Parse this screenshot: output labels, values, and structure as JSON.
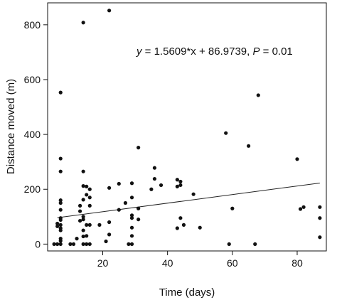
{
  "chart_data": {
    "type": "scatter",
    "title": "",
    "xlabel": "Time (days)",
    "ylabel": "Distance moved (m)",
    "xlim": [
      3,
      89
    ],
    "ylim": [
      -25,
      880
    ],
    "xticks": [
      20,
      40,
      60,
      80
    ],
    "yticks": [
      0,
      200,
      400,
      600,
      800
    ],
    "grid": false,
    "legend": "none",
    "point_color": "#111111",
    "line_color": "#222222",
    "annotation": {
      "y_var": "y",
      "equation": " = 1.5609*x + 86.9739, ",
      "p_var": "P",
      "p_value": " = 0.01"
    },
    "fit": {
      "slope": 1.5609,
      "intercept": 86.9739,
      "x_range": [
        6,
        87
      ]
    },
    "points": [
      {
        "x": 5,
        "y": 0
      },
      {
        "x": 6,
        "y": 0
      },
      {
        "x": 7,
        "y": 0
      },
      {
        "x": 6,
        "y": 65
      },
      {
        "x": 6,
        "y": 75
      },
      {
        "x": 7,
        "y": 12
      },
      {
        "x": 7,
        "y": 20
      },
      {
        "x": 7,
        "y": 50
      },
      {
        "x": 7,
        "y": 58
      },
      {
        "x": 7,
        "y": 70
      },
      {
        "x": 7,
        "y": 88
      },
      {
        "x": 7,
        "y": 95
      },
      {
        "x": 7,
        "y": 125
      },
      {
        "x": 7,
        "y": 150
      },
      {
        "x": 7,
        "y": 160
      },
      {
        "x": 7,
        "y": 265
      },
      {
        "x": 7,
        "y": 312
      },
      {
        "x": 7,
        "y": 553
      },
      {
        "x": 10,
        "y": 0
      },
      {
        "x": 11,
        "y": 0
      },
      {
        "x": 12,
        "y": 20
      },
      {
        "x": 13,
        "y": 85
      },
      {
        "x": 13,
        "y": 120
      },
      {
        "x": 13,
        "y": 140
      },
      {
        "x": 14,
        "y": 0
      },
      {
        "x": 14,
        "y": 28
      },
      {
        "x": 14,
        "y": 50
      },
      {
        "x": 14,
        "y": 90
      },
      {
        "x": 14,
        "y": 100
      },
      {
        "x": 14,
        "y": 162
      },
      {
        "x": 14,
        "y": 212
      },
      {
        "x": 14,
        "y": 265
      },
      {
        "x": 14,
        "y": 808
      },
      {
        "x": 15,
        "y": 0
      },
      {
        "x": 15,
        "y": 30
      },
      {
        "x": 15,
        "y": 70
      },
      {
        "x": 15,
        "y": 180
      },
      {
        "x": 15,
        "y": 210
      },
      {
        "x": 16,
        "y": 0
      },
      {
        "x": 16,
        "y": 70
      },
      {
        "x": 16,
        "y": 140
      },
      {
        "x": 16,
        "y": 170
      },
      {
        "x": 16,
        "y": 200
      },
      {
        "x": 19,
        "y": 70
      },
      {
        "x": 21,
        "y": 10
      },
      {
        "x": 22,
        "y": 35
      },
      {
        "x": 22,
        "y": 80
      },
      {
        "x": 22,
        "y": 205
      },
      {
        "x": 22,
        "y": 852
      },
      {
        "x": 25,
        "y": 125
      },
      {
        "x": 25,
        "y": 220
      },
      {
        "x": 27,
        "y": 150
      },
      {
        "x": 28,
        "y": 0
      },
      {
        "x": 29,
        "y": 0
      },
      {
        "x": 29,
        "y": 30
      },
      {
        "x": 29,
        "y": 60
      },
      {
        "x": 29,
        "y": 95
      },
      {
        "x": 29,
        "y": 105
      },
      {
        "x": 29,
        "y": 170
      },
      {
        "x": 29,
        "y": 222
      },
      {
        "x": 31,
        "y": 90
      },
      {
        "x": 31,
        "y": 130
      },
      {
        "x": 31,
        "y": 352
      },
      {
        "x": 35,
        "y": 200
      },
      {
        "x": 36,
        "y": 238
      },
      {
        "x": 36,
        "y": 278
      },
      {
        "x": 38,
        "y": 215
      },
      {
        "x": 43,
        "y": 58
      },
      {
        "x": 43,
        "y": 210
      },
      {
        "x": 43,
        "y": 235
      },
      {
        "x": 44,
        "y": 95
      },
      {
        "x": 44,
        "y": 215
      },
      {
        "x": 44,
        "y": 228
      },
      {
        "x": 45,
        "y": 70
      },
      {
        "x": 48,
        "y": 182
      },
      {
        "x": 50,
        "y": 60
      },
      {
        "x": 58,
        "y": 405
      },
      {
        "x": 59,
        "y": 0
      },
      {
        "x": 60,
        "y": 130
      },
      {
        "x": 65,
        "y": 358
      },
      {
        "x": 67,
        "y": 0
      },
      {
        "x": 68,
        "y": 543
      },
      {
        "x": 80,
        "y": 310
      },
      {
        "x": 81,
        "y": 128
      },
      {
        "x": 82,
        "y": 135
      },
      {
        "x": 87,
        "y": 25
      },
      {
        "x": 87,
        "y": 95
      },
      {
        "x": 87,
        "y": 135
      }
    ]
  }
}
